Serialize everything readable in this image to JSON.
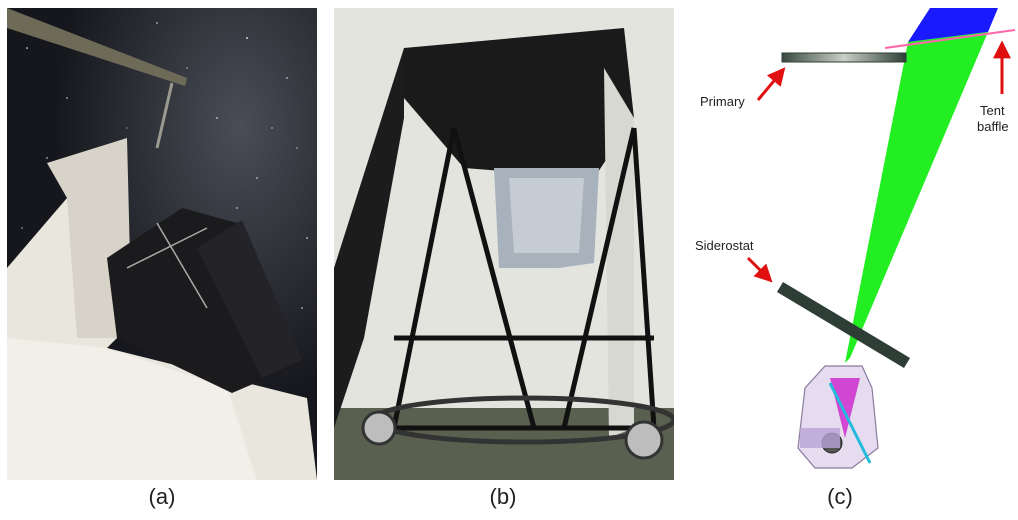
{
  "panels": [
    {
      "id": "a",
      "caption": "(a)"
    },
    {
      "id": "b",
      "caption": "(b)"
    },
    {
      "id": "c",
      "caption": "(c)"
    }
  ],
  "diagram_labels": {
    "primary": "Primary",
    "tent_baffle_line1": "Tent",
    "tent_baffle_line2": "baffle",
    "siderostat": "Siderostat"
  },
  "colors": {
    "night_sky": "#15171c",
    "tent_fabric": "#e9e6dd",
    "baffle_black": "#1b1b1d",
    "mirror_dark": "#2e3e36",
    "beam_green": "#22ee22",
    "beam_blue": "#1a1aff",
    "baffle_pink": "#ff66aa",
    "arrow_red": "#e01010",
    "instrument_purple": "#9a6cc9"
  }
}
